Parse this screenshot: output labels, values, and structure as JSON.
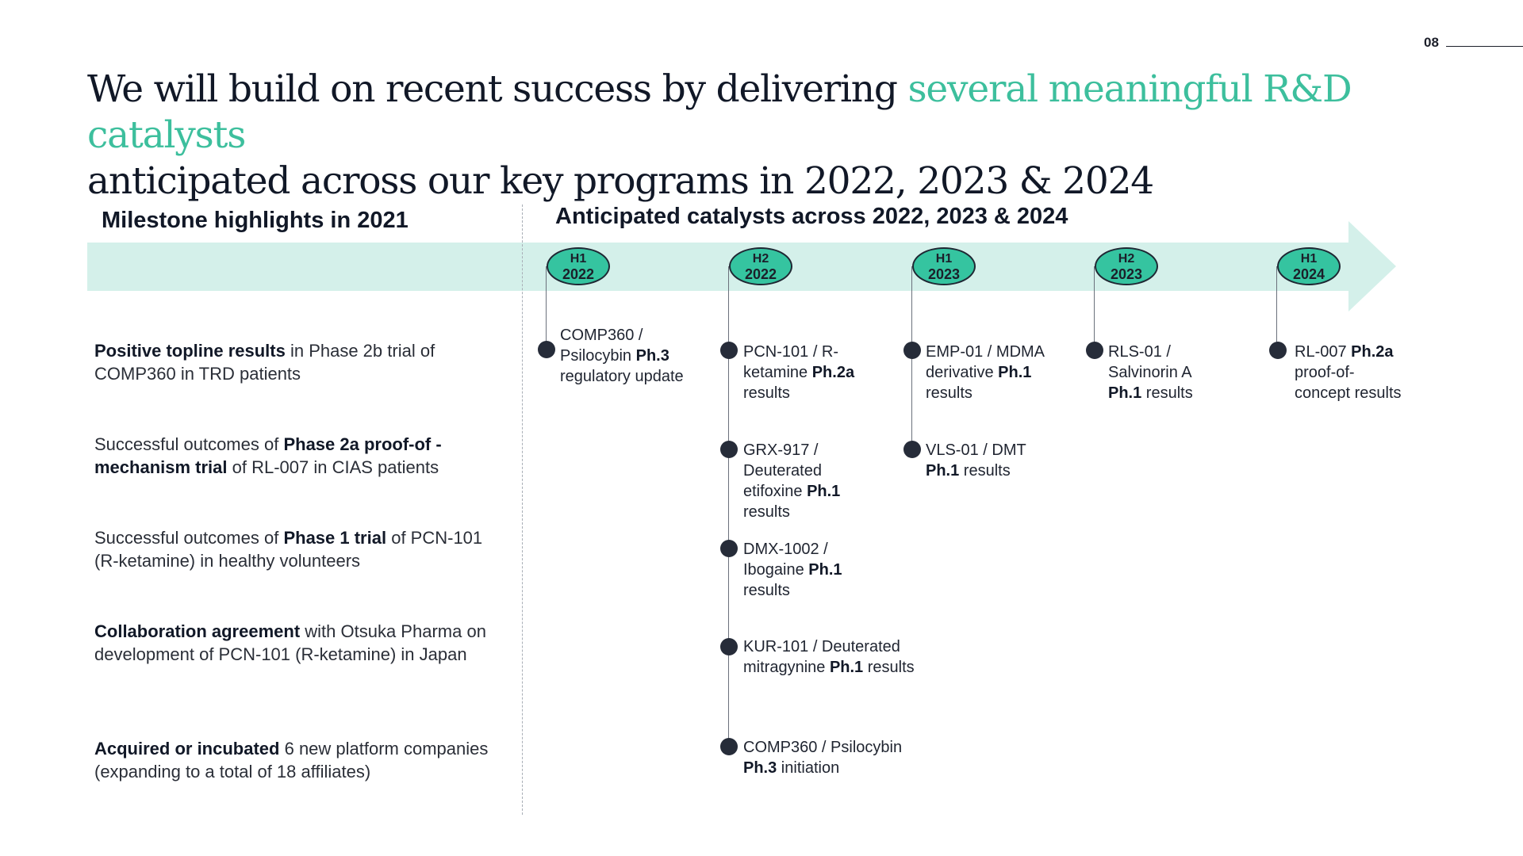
{
  "page_number": "08",
  "title": {
    "part1": "We will build on recent success by delivering ",
    "accent": "several meaningful R&D catalysts",
    "part2": "anticipated across our key programs in 2022, 2023 & 2024"
  },
  "left_heading": "Milestone highlights in 2021",
  "right_heading": "Anticipated catalysts across 2022, 2023 & 2024",
  "colors": {
    "accent": "#3dbf9d",
    "band": "#d4f0ea",
    "pill": "#35c4a0",
    "dot": "#262c39"
  },
  "milestones": [
    {
      "b1": "Positive topline results",
      "t1": " in Phase 2b trial of COMP360 in TRD patients"
    },
    {
      "t1": "Successful outcomes of ",
      "b1": "Phase 2a proof-of - mechanism trial",
      "t2": " of RL-007 in CIAS patients"
    },
    {
      "t1": "Successful outcomes of ",
      "b1": "Phase 1 trial",
      "t2": " of PCN-101 (R-ketamine) in healthy volunteers"
    },
    {
      "b1": "Collaboration agreement",
      "t1": " with Otsuka Pharma on development of PCN-101 (R-ketamine) in Japan"
    },
    {
      "b1": "Acquired or incubated",
      "t1": " 6 new platform companies (expanding to a total of 18 affiliates)"
    }
  ],
  "periods": [
    {
      "half": "H1",
      "year": "2022"
    },
    {
      "half": "H2",
      "year": "2022"
    },
    {
      "half": "H1",
      "year": "2023"
    },
    {
      "half": "H2",
      "year": "2023"
    },
    {
      "half": "H1",
      "year": "2024"
    }
  ],
  "catalysts": {
    "h1_2022": [
      {
        "t1": "COMP360 / Psilocybin ",
        "b1": "Ph.3",
        "t2": " regulatory update"
      }
    ],
    "h2_2022": [
      {
        "t1": "PCN-101 / R-ketamine ",
        "b1": "Ph.2a",
        "t2": " results"
      },
      {
        "t1": "GRX-917 / Deuterated etifoxine ",
        "b1": "Ph.1",
        "t2": " results"
      },
      {
        "t1": "DMX-1002 / Ibogaine ",
        "b1": "Ph.1",
        "t2": " results"
      },
      {
        "t1": "KUR-101 / Deuterated mitragynine ",
        "b1": "Ph.1",
        "t2": " results"
      },
      {
        "t1": "COMP360 / Psilocybin ",
        "b1": "Ph.3",
        "t2": " initiation"
      }
    ],
    "h1_2023": [
      {
        "t1": "EMP-01 / MDMA derivative ",
        "b1": "Ph.1",
        "t2": " results"
      },
      {
        "t1": "VLS-01 / DMT ",
        "b1": "Ph.1",
        "t2": " results"
      }
    ],
    "h2_2023": [
      {
        "t1": "RLS-01 / Salvinorin A ",
        "b1": "Ph.1",
        "t2": " results"
      }
    ],
    "h1_2024": [
      {
        "t1": "RL-007 ",
        "b1": "Ph.2a",
        "t2": " proof-of-concept results"
      }
    ]
  }
}
